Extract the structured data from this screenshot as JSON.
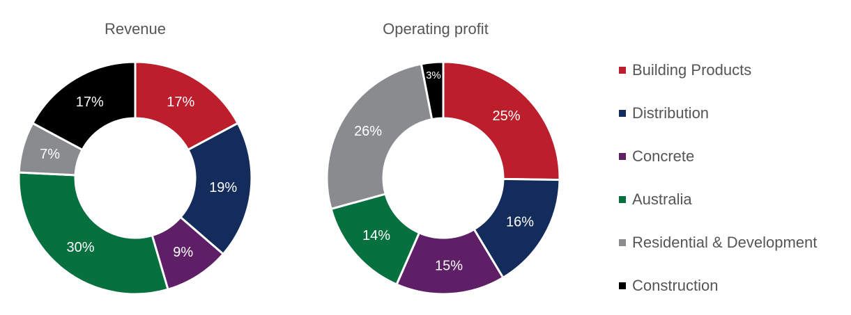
{
  "chart_data": [
    {
      "type": "pie",
      "title": "Revenue",
      "categories": [
        "Building Products",
        "Distribution",
        "Concrete",
        "Australia",
        "Residential & Development",
        "Construction"
      ],
      "values": [
        17,
        19,
        9,
        30,
        7,
        17
      ],
      "labels": [
        "17%",
        "19%",
        "9%",
        "30%",
        "7%",
        "17%"
      ]
    },
    {
      "type": "pie",
      "title": "Operating profit",
      "categories": [
        "Building Products",
        "Distribution",
        "Concrete",
        "Australia",
        "Residential & Development",
        "Construction"
      ],
      "values": [
        25,
        16,
        15,
        14,
        26,
        3
      ],
      "labels": [
        "25%",
        "16%",
        "15%",
        "14%",
        "26%",
        "3%"
      ]
    }
  ],
  "legend": {
    "position": "right",
    "items": [
      {
        "label": "Building Products",
        "color": "#bd1e2b"
      },
      {
        "label": "Distribution",
        "color": "#132c5c"
      },
      {
        "label": "Concrete",
        "color": "#5e1f66"
      },
      {
        "label": "Australia",
        "color": "#07703f"
      },
      {
        "label": "Residential & Development",
        "color": "#898b8e"
      },
      {
        "label": "Construction",
        "color": "#000000"
      }
    ]
  }
}
